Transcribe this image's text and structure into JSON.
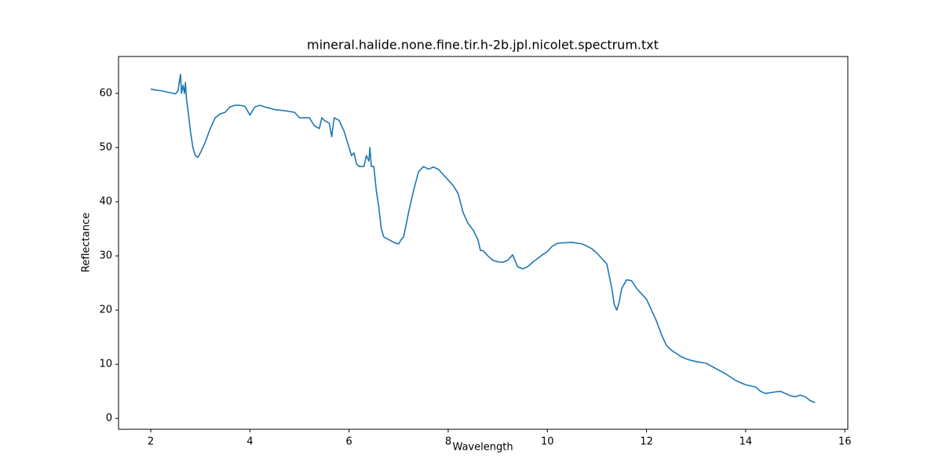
{
  "chart_data": {
    "type": "line",
    "title": "mineral.halide.none.fine.tir.h-2b.jpl.nicolet.spectrum.txt",
    "x_label": "Wavelength",
    "y_label": "Reflectance",
    "xlim": [
      1.35,
      16.06
    ],
    "ylim": [
      -2.0,
      66.8
    ],
    "xticks": [
      2,
      4,
      6,
      8,
      10,
      12,
      14,
      16
    ],
    "yticks": [
      0,
      10,
      20,
      30,
      40,
      50,
      60
    ],
    "series": [
      {
        "color": "#1f77b4",
        "x": [
          2.0,
          2.1,
          2.2,
          2.3,
          2.4,
          2.5,
          2.55,
          2.6,
          2.62,
          2.65,
          2.68,
          2.7,
          2.72,
          2.75,
          2.8,
          2.85,
          2.9,
          2.95,
          3.0,
          3.1,
          3.2,
          3.3,
          3.4,
          3.5,
          3.6,
          3.7,
          3.8,
          3.9,
          4.0,
          4.1,
          4.2,
          4.3,
          4.5,
          4.7,
          4.9,
          5.0,
          5.2,
          5.3,
          5.4,
          5.45,
          5.5,
          5.6,
          5.65,
          5.7,
          5.8,
          5.85,
          5.9,
          5.95,
          6.0,
          6.05,
          6.1,
          6.15,
          6.2,
          6.3,
          6.35,
          6.4,
          6.42,
          6.45,
          6.5,
          6.55,
          6.6,
          6.65,
          6.7,
          6.8,
          6.9,
          7.0,
          7.05,
          7.1,
          7.2,
          7.3,
          7.4,
          7.5,
          7.6,
          7.7,
          7.8,
          7.9,
          8.0,
          8.1,
          8.2,
          8.3,
          8.4,
          8.5,
          8.6,
          8.65,
          8.7,
          8.8,
          8.9,
          9.0,
          9.1,
          9.2,
          9.3,
          9.4,
          9.5,
          9.6,
          9.7,
          9.8,
          9.9,
          10.0,
          10.1,
          10.2,
          10.3,
          10.5,
          10.7,
          10.8,
          10.9,
          11.0,
          11.1,
          11.2,
          11.3,
          11.35,
          11.4,
          11.45,
          11.5,
          11.6,
          11.7,
          11.8,
          11.9,
          12.0,
          12.1,
          12.2,
          12.3,
          12.4,
          12.5,
          12.6,
          12.7,
          12.8,
          12.9,
          13.0,
          13.2,
          13.4,
          13.6,
          13.8,
          14.0,
          14.2,
          14.3,
          14.4,
          14.6,
          14.7,
          14.8,
          14.9,
          15.0,
          15.1,
          15.2,
          15.3,
          15.4
        ],
        "values": [
          60.8,
          60.6,
          60.5,
          60.3,
          60.1,
          59.9,
          60.5,
          63.5,
          60,
          61.5,
          60,
          62,
          59,
          57,
          53,
          50,
          48.5,
          48.2,
          49,
          51,
          53.5,
          55.5,
          56.2,
          56.5,
          57.5,
          57.8,
          57.8,
          57.6,
          56,
          57.5,
          57.8,
          57.5,
          57,
          56.8,
          56.5,
          55.5,
          55.5,
          54,
          53.5,
          55.5,
          55,
          54.5,
          52,
          55.5,
          55,
          54,
          53,
          51.5,
          50,
          48.5,
          49,
          47,
          46.5,
          46.5,
          48.5,
          47.5,
          50,
          46.5,
          46.5,
          42,
          39,
          35,
          33.5,
          33,
          32.5,
          32.2,
          33,
          33.5,
          38,
          42,
          45.5,
          46.5,
          46,
          46.4,
          46,
          45,
          44,
          43,
          41.5,
          38,
          36,
          34.8,
          33,
          31,
          31,
          30,
          29.2,
          28.9,
          28.8,
          29.2,
          30.2,
          28,
          27.6,
          28,
          28.8,
          29.5,
          30.2,
          30.8,
          31.8,
          32.3,
          32.4,
          32.5,
          32.2,
          31.8,
          31.3,
          30.5,
          29.5,
          28.5,
          24,
          21,
          20,
          21.5,
          24,
          25.6,
          25.4,
          24,
          23,
          22,
          20,
          18,
          15.5,
          13.5,
          12.6,
          12,
          11.4,
          11,
          10.7,
          10.5,
          10.2,
          9.2,
          8.2,
          7,
          6.2,
          5.8,
          5,
          4.6,
          4.9,
          5,
          4.6,
          4.2,
          4.0,
          4.3,
          4.0,
          3.3,
          2.9
        ]
      }
    ]
  }
}
